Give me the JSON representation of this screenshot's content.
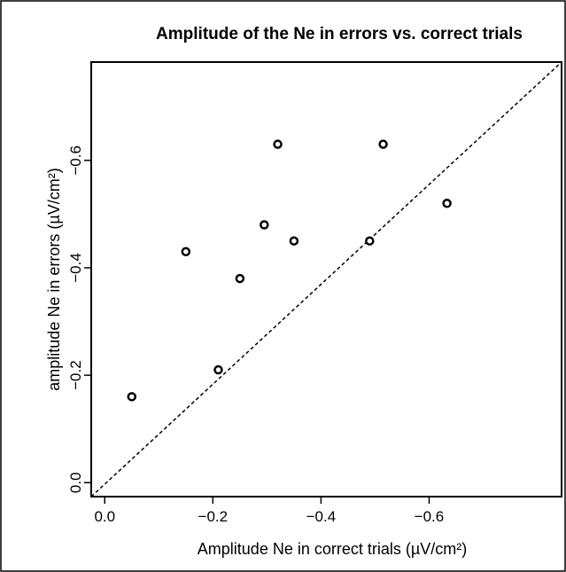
{
  "chart_data": {
    "type": "scatter",
    "title": "Amplitude of the Ne in errors vs. correct trials",
    "x_label": "Amplitude Ne in correct trials (µV/cm²)",
    "y_label": "amplitude Ne in errors (µV/cm²)",
    "x": [
      -0.05,
      -0.15,
      -0.21,
      -0.25,
      -0.295,
      -0.32,
      -0.35,
      -0.49,
      -0.515,
      -0.633
    ],
    "y": [
      -0.16,
      -0.43,
      -0.21,
      -0.38,
      -0.48,
      -0.63,
      -0.45,
      -0.45,
      -0.63,
      -0.52
    ],
    "color": "#000000",
    "xlim": [
      0.025,
      -0.845
    ],
    "ylim": [
      0.026,
      -0.783
    ],
    "xticks": [
      {
        "value": 0,
        "label": "0.0"
      },
      {
        "value": -0.2,
        "label": "−0.2"
      },
      {
        "value": -0.4,
        "label": "−0.4"
      },
      {
        "value": -0.6,
        "label": "−0.6"
      }
    ],
    "yticks": [
      {
        "value": 0,
        "label": "0.0"
      },
      {
        "value": -0.2,
        "label": "−0.2"
      },
      {
        "value": -0.4,
        "label": "−0.4"
      },
      {
        "value": -0.6,
        "label": "−0.6"
      }
    ]
  }
}
